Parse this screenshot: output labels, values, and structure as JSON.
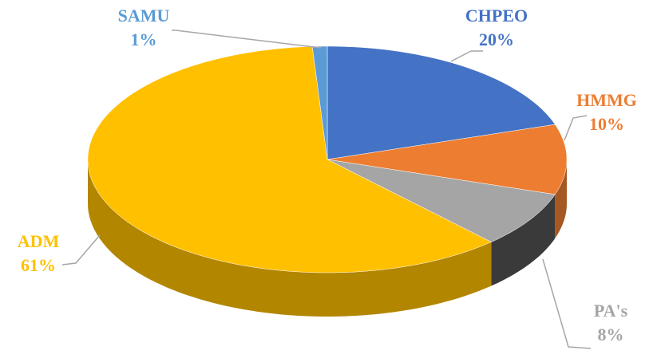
{
  "chart_data": {
    "type": "pie",
    "categories": [
      "CHPEO",
      "HMMG",
      "PA's",
      "ADM",
      "SAMU"
    ],
    "values": [
      20,
      10,
      8,
      61,
      1
    ],
    "value_labels": [
      "20%",
      "10%",
      "8%",
      "61%",
      "1%"
    ],
    "colors": [
      "#4472c4",
      "#ed7d31",
      "#a5a5a5",
      "#ffc000",
      "#5b9bd5"
    ]
  }
}
